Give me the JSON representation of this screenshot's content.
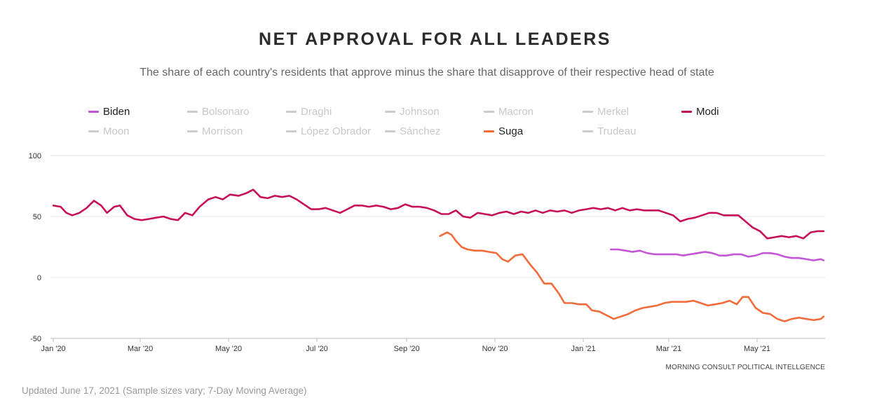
{
  "header": {
    "title": "NET APPROVAL FOR ALL LEADERS",
    "subtitle": "The share of each country's residents that approve minus the share that disapprove of their respective head of state"
  },
  "legend": [
    {
      "label": "Biden",
      "active": true,
      "color": "#c455d6"
    },
    {
      "label": "Bolsonaro",
      "active": false,
      "color": "#cccccc"
    },
    {
      "label": "Draghi",
      "active": false,
      "color": "#cccccc"
    },
    {
      "label": "Johnson",
      "active": false,
      "color": "#cccccc"
    },
    {
      "label": "Macron",
      "active": false,
      "color": "#cccccc"
    },
    {
      "label": "Merkel",
      "active": false,
      "color": "#cccccc"
    },
    {
      "label": "Modi",
      "active": true,
      "color": "#c8105a"
    },
    {
      "label": "Moon",
      "active": false,
      "color": "#cccccc"
    },
    {
      "label": "Morrison",
      "active": false,
      "color": "#cccccc"
    },
    {
      "label": "López Obrador",
      "active": false,
      "color": "#cccccc"
    },
    {
      "label": "Sánchez",
      "active": false,
      "color": "#cccccc"
    },
    {
      "label": "Suga",
      "active": true,
      "color": "#f26b3a"
    },
    {
      "label": "Trudeau",
      "active": false,
      "color": "#cccccc"
    }
  ],
  "chart_data": {
    "type": "line",
    "title": "NET APPROVAL FOR ALL LEADERS",
    "subtitle": "The share of each country's residents that approve minus the share that disapprove of their respective head of state",
    "x_ticks": [
      "Jan '20",
      "Mar '20",
      "May '20",
      "Jul '20",
      "Sep '20",
      "Nov '20",
      "Jan '21",
      "Mar '21",
      "May '21"
    ],
    "y_ticks": [
      "100",
      "50",
      "0",
      "-50"
    ],
    "ylim": [
      -50,
      100
    ],
    "xlim": [
      "2019-12-30",
      "2021-06-17"
    ],
    "grid": true,
    "legend_position": "top",
    "series": [
      {
        "name": "Modi",
        "color": "#c8105a",
        "points": [
          [
            "2020-01-01",
            59
          ],
          [
            "2020-01-06",
            58
          ],
          [
            "2020-01-10",
            53
          ],
          [
            "2020-01-14",
            51
          ],
          [
            "2020-01-19",
            53
          ],
          [
            "2020-01-24",
            57
          ],
          [
            "2020-01-29",
            63
          ],
          [
            "2020-02-03",
            59
          ],
          [
            "2020-02-07",
            53
          ],
          [
            "2020-02-12",
            58
          ],
          [
            "2020-02-16",
            59
          ],
          [
            "2020-02-21",
            51
          ],
          [
            "2020-02-26",
            48
          ],
          [
            "2020-03-02",
            47
          ],
          [
            "2020-03-07",
            48
          ],
          [
            "2020-03-12",
            49
          ],
          [
            "2020-03-17",
            50
          ],
          [
            "2020-03-22",
            48
          ],
          [
            "2020-03-27",
            47
          ],
          [
            "2020-04-01",
            53
          ],
          [
            "2020-04-06",
            51
          ],
          [
            "2020-04-11",
            58
          ],
          [
            "2020-04-17",
            64
          ],
          [
            "2020-04-22",
            66
          ],
          [
            "2020-04-27",
            64
          ],
          [
            "2020-05-02",
            68
          ],
          [
            "2020-05-08",
            67
          ],
          [
            "2020-05-13",
            69
          ],
          [
            "2020-05-18",
            72
          ],
          [
            "2020-05-23",
            66
          ],
          [
            "2020-05-28",
            65
          ],
          [
            "2020-06-02",
            67
          ],
          [
            "2020-06-07",
            66
          ],
          [
            "2020-06-12",
            67
          ],
          [
            "2020-06-17",
            64
          ],
          [
            "2020-06-22",
            60
          ],
          [
            "2020-06-27",
            56
          ],
          [
            "2020-07-02",
            56
          ],
          [
            "2020-07-07",
            57
          ],
          [
            "2020-07-12",
            55
          ],
          [
            "2020-07-17",
            53
          ],
          [
            "2020-07-22",
            56
          ],
          [
            "2020-07-27",
            59
          ],
          [
            "2020-08-01",
            59
          ],
          [
            "2020-08-06",
            58
          ],
          [
            "2020-08-11",
            59
          ],
          [
            "2020-08-16",
            58
          ],
          [
            "2020-08-21",
            56
          ],
          [
            "2020-08-26",
            57
          ],
          [
            "2020-08-31",
            60
          ],
          [
            "2020-09-05",
            58
          ],
          [
            "2020-09-10",
            58
          ],
          [
            "2020-09-15",
            57
          ],
          [
            "2020-09-20",
            55
          ],
          [
            "2020-09-25",
            52
          ],
          [
            "2020-09-30",
            52
          ],
          [
            "2020-10-05",
            55
          ],
          [
            "2020-10-10",
            50
          ],
          [
            "2020-10-15",
            49
          ],
          [
            "2020-10-20",
            53
          ],
          [
            "2020-10-25",
            52
          ],
          [
            "2020-10-30",
            51
          ],
          [
            "2020-11-04",
            53
          ],
          [
            "2020-11-09",
            54
          ],
          [
            "2020-11-14",
            52
          ],
          [
            "2020-11-19",
            54
          ],
          [
            "2020-11-24",
            53
          ],
          [
            "2020-11-29",
            55
          ],
          [
            "2020-12-04",
            53
          ],
          [
            "2020-12-09",
            55
          ],
          [
            "2020-12-14",
            54
          ],
          [
            "2020-12-19",
            55
          ],
          [
            "2020-12-24",
            53
          ],
          [
            "2020-12-29",
            55
          ],
          [
            "2021-01-03",
            56
          ],
          [
            "2021-01-08",
            57
          ],
          [
            "2021-01-13",
            56
          ],
          [
            "2021-01-18",
            57
          ],
          [
            "2021-01-23",
            55
          ],
          [
            "2021-01-28",
            57
          ],
          [
            "2021-02-02",
            55
          ],
          [
            "2021-02-07",
            56
          ],
          [
            "2021-02-12",
            55
          ],
          [
            "2021-02-17",
            55
          ],
          [
            "2021-02-22",
            55
          ],
          [
            "2021-02-27",
            53
          ],
          [
            "2021-03-04",
            51
          ],
          [
            "2021-03-09",
            46
          ],
          [
            "2021-03-14",
            48
          ],
          [
            "2021-03-19",
            49
          ],
          [
            "2021-03-24",
            51
          ],
          [
            "2021-03-29",
            53
          ],
          [
            "2021-04-03",
            53
          ],
          [
            "2021-04-08",
            51
          ],
          [
            "2021-04-13",
            51
          ],
          [
            "2021-04-18",
            51
          ],
          [
            "2021-04-23",
            46
          ],
          [
            "2021-04-28",
            41
          ],
          [
            "2021-05-03",
            38
          ],
          [
            "2021-05-08",
            32
          ],
          [
            "2021-05-13",
            33
          ],
          [
            "2021-05-18",
            34
          ],
          [
            "2021-05-23",
            33
          ],
          [
            "2021-05-28",
            34
          ],
          [
            "2021-06-02",
            32
          ],
          [
            "2021-06-07",
            37
          ],
          [
            "2021-06-12",
            38
          ],
          [
            "2021-06-16",
            38
          ]
        ]
      },
      {
        "name": "Suga",
        "color": "#f26b3a",
        "points": [
          [
            "2020-09-24",
            34
          ],
          [
            "2020-09-29",
            37
          ],
          [
            "2020-10-02",
            35
          ],
          [
            "2020-10-05",
            30
          ],
          [
            "2020-10-09",
            25
          ],
          [
            "2020-10-13",
            23
          ],
          [
            "2020-10-18",
            22
          ],
          [
            "2020-10-23",
            22
          ],
          [
            "2020-10-28",
            21
          ],
          [
            "2020-11-02",
            20
          ],
          [
            "2020-11-06",
            15
          ],
          [
            "2020-11-10",
            13
          ],
          [
            "2020-11-15",
            18
          ],
          [
            "2020-11-20",
            19
          ],
          [
            "2020-11-25",
            11
          ],
          [
            "2020-11-30",
            4
          ],
          [
            "2020-12-05",
            -5
          ],
          [
            "2020-12-10",
            -5
          ],
          [
            "2020-12-15",
            -13
          ],
          [
            "2020-12-19",
            -21
          ],
          [
            "2020-12-24",
            -21
          ],
          [
            "2020-12-29",
            -22
          ],
          [
            "2021-01-03",
            -22
          ],
          [
            "2021-01-07",
            -27
          ],
          [
            "2021-01-12",
            -28
          ],
          [
            "2021-01-17",
            -31
          ],
          [
            "2021-01-22",
            -34
          ],
          [
            "2021-01-27",
            -32
          ],
          [
            "2021-02-01",
            -30
          ],
          [
            "2021-02-06",
            -27
          ],
          [
            "2021-02-11",
            -25
          ],
          [
            "2021-02-16",
            -24
          ],
          [
            "2021-02-21",
            -23
          ],
          [
            "2021-02-26",
            -21
          ],
          [
            "2021-03-03",
            -20
          ],
          [
            "2021-03-08",
            -20
          ],
          [
            "2021-03-13",
            -20
          ],
          [
            "2021-03-18",
            -19
          ],
          [
            "2021-03-23",
            -21
          ],
          [
            "2021-03-28",
            -23
          ],
          [
            "2021-04-02",
            -22
          ],
          [
            "2021-04-07",
            -21
          ],
          [
            "2021-04-12",
            -19
          ],
          [
            "2021-04-17",
            -22
          ],
          [
            "2021-04-21",
            -16
          ],
          [
            "2021-04-25",
            -16
          ],
          [
            "2021-04-30",
            -25
          ],
          [
            "2021-05-05",
            -29
          ],
          [
            "2021-05-10",
            -30
          ],
          [
            "2021-05-15",
            -34
          ],
          [
            "2021-05-20",
            -36
          ],
          [
            "2021-05-25",
            -34
          ],
          [
            "2021-05-30",
            -33
          ],
          [
            "2021-06-04",
            -34
          ],
          [
            "2021-06-09",
            -35
          ],
          [
            "2021-06-14",
            -34
          ],
          [
            "2021-06-16",
            -32
          ]
        ]
      },
      {
        "name": "Biden",
        "color": "#c455d6",
        "points": [
          [
            "2021-01-20",
            23
          ],
          [
            "2021-01-25",
            23
          ],
          [
            "2021-01-30",
            22
          ],
          [
            "2021-02-04",
            21
          ],
          [
            "2021-02-09",
            22
          ],
          [
            "2021-02-14",
            20
          ],
          [
            "2021-02-19",
            19
          ],
          [
            "2021-02-24",
            19
          ],
          [
            "2021-03-01",
            19
          ],
          [
            "2021-03-06",
            19
          ],
          [
            "2021-03-11",
            18
          ],
          [
            "2021-03-16",
            19
          ],
          [
            "2021-03-21",
            20
          ],
          [
            "2021-03-26",
            21
          ],
          [
            "2021-03-31",
            20
          ],
          [
            "2021-04-05",
            18
          ],
          [
            "2021-04-10",
            18
          ],
          [
            "2021-04-15",
            19
          ],
          [
            "2021-04-20",
            19
          ],
          [
            "2021-04-25",
            17
          ],
          [
            "2021-04-30",
            18
          ],
          [
            "2021-05-05",
            20
          ],
          [
            "2021-05-10",
            20
          ],
          [
            "2021-05-15",
            19
          ],
          [
            "2021-05-20",
            17
          ],
          [
            "2021-05-25",
            16
          ],
          [
            "2021-05-30",
            16
          ],
          [
            "2021-06-04",
            15
          ],
          [
            "2021-06-09",
            14
          ],
          [
            "2021-06-14",
            15
          ],
          [
            "2021-06-16",
            14
          ]
        ]
      }
    ]
  },
  "source": "MORNING CONSULT POLITICAL INTELLGENCE",
  "footnote": "Updated June 17, 2021 (Sample sizes vary; 7-Day Moving Average)"
}
